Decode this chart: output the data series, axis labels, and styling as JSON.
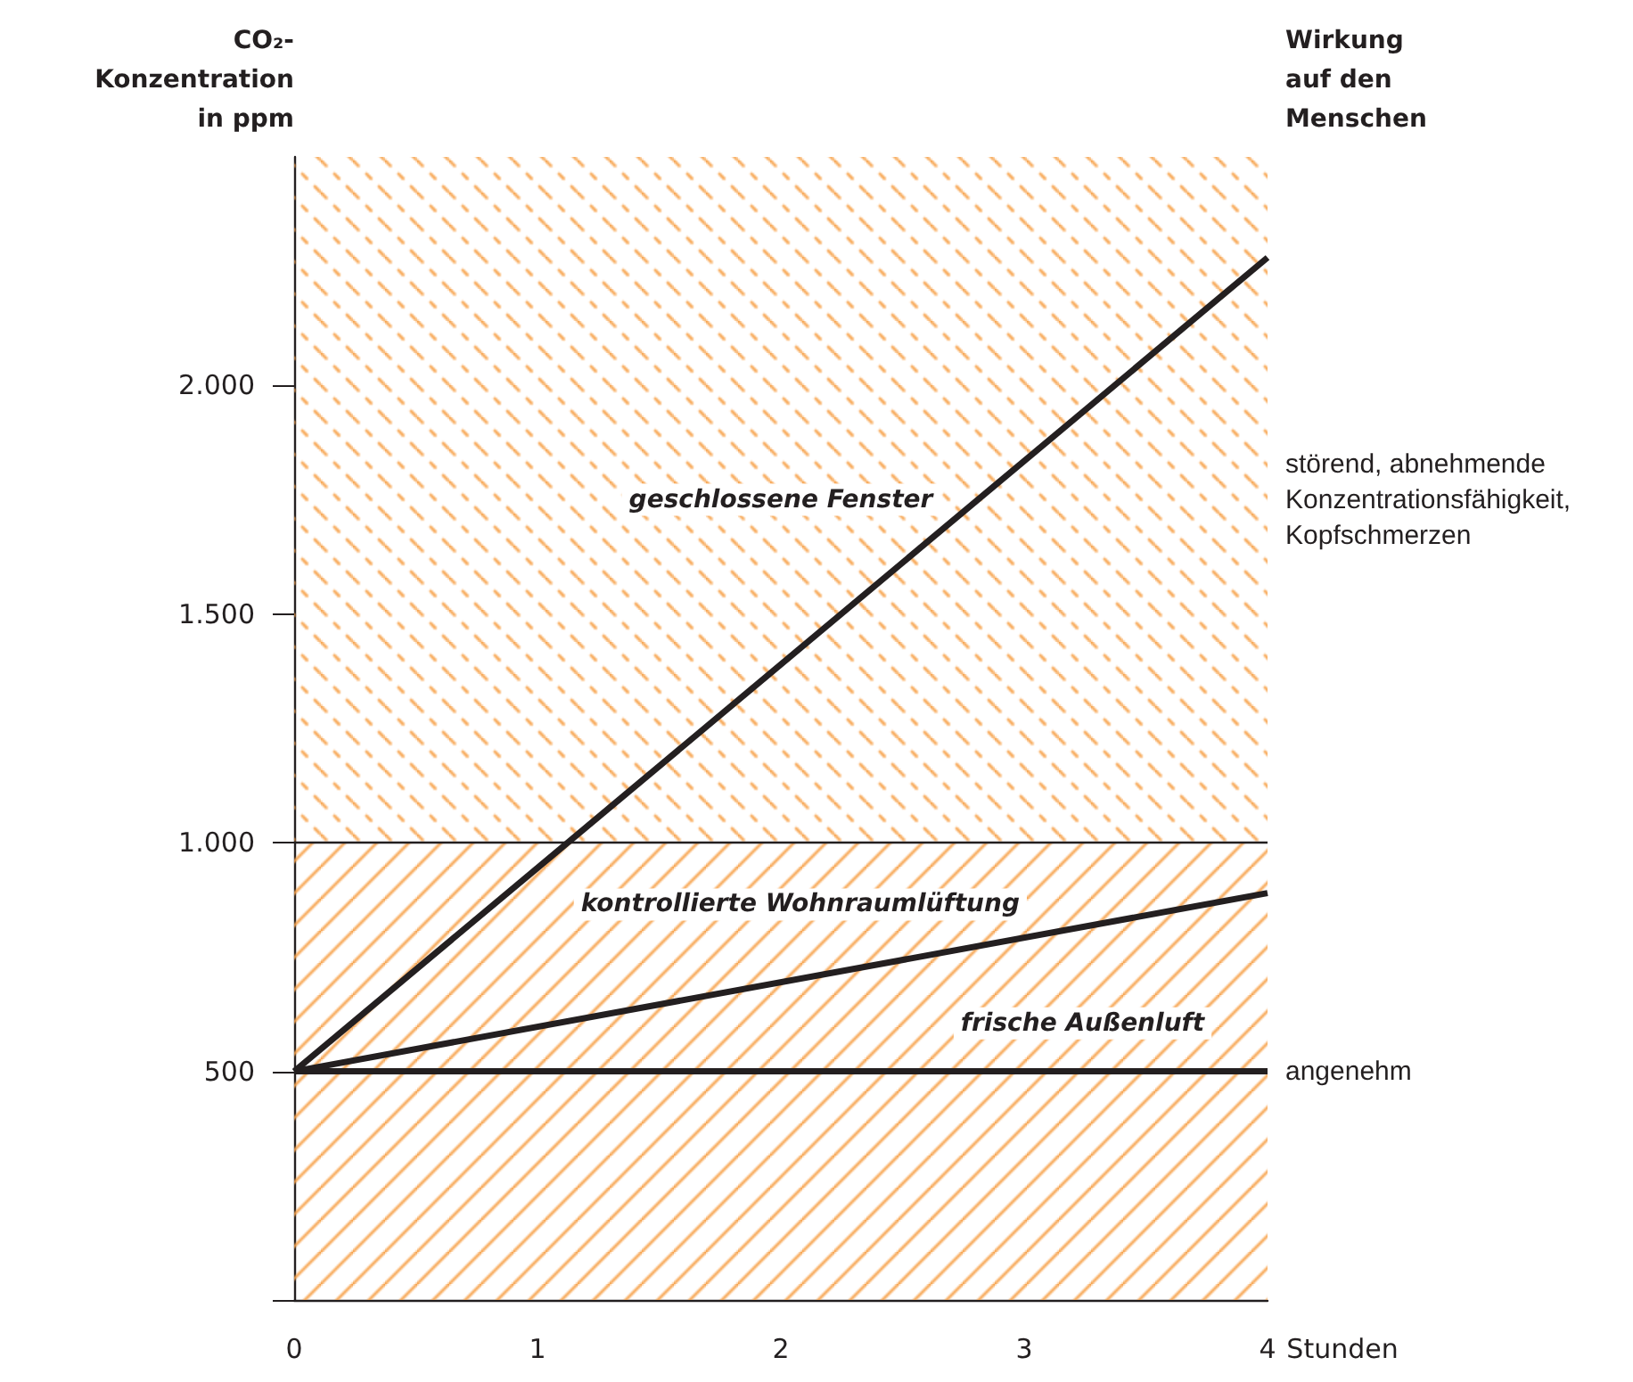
{
  "chart_data": {
    "type": "line",
    "ylabel": "CO₂-\nKonzentration\nin ppm",
    "y2label": "Wirkung\nauf den\nMenschen",
    "xlabel": "Stunden",
    "x": [
      0,
      4
    ],
    "xlim": [
      0,
      4
    ],
    "xticks": [
      0,
      1,
      2,
      3,
      4
    ],
    "ylim": [
      0,
      2500
    ],
    "yticks": [
      {
        "value": 0,
        "label": null
      },
      {
        "value": 500,
        "label": "500"
      },
      {
        "value": 1000,
        "label": "1.000"
      },
      {
        "value": 1500,
        "label": "1.500"
      },
      {
        "value": 2000,
        "label": "2.000"
      }
    ],
    "series": [
      {
        "name": "geschlossene Fenster",
        "color": "#231f20",
        "values": [
          500,
          2280
        ]
      },
      {
        "name": "kontrollierte Wohnraumlüftung",
        "color": "#231f20",
        "values": [
          500,
          890
        ]
      },
      {
        "name": "frische Außenluft",
        "color": "#231f20",
        "values": [
          500,
          500
        ]
      }
    ],
    "bands": [
      {
        "axis": "y",
        "from": 0,
        "to": 1000,
        "label": "angenehm",
        "color": "#f7a24b"
      },
      {
        "axis": "y",
        "from": 1000,
        "to": 2500,
        "label": "störend, abnehmende Konzentrationsfähigkeit, Kopfschmerzen",
        "color": "#f7a24b"
      }
    ],
    "ref_lines": [
      {
        "axis": "y",
        "value": 1000,
        "color": "#231f20"
      }
    ],
    "line_style": "solid",
    "marker": "none",
    "grid": false,
    "legend": false
  }
}
